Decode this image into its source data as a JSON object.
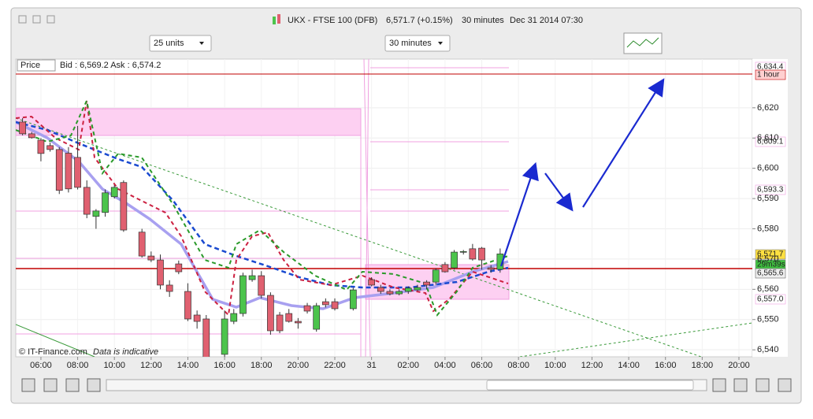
{
  "window": {
    "title": "UKX - FTSE 100 (DFB)",
    "price": "6,571.7 (+0.15%)",
    "interval": "30 minutes",
    "datetime": "Dec 31 2014 07:30"
  },
  "toolbar": {
    "units": "25 units",
    "period": "30 minutes"
  },
  "info": {
    "price_label": "Price",
    "bid_ask": "Bid : 6,569.2 Ask : 6,574.2"
  },
  "footer": {
    "copyright": "© IT-Finance.com",
    "note": "Data is indicative"
  },
  "price_tags": [
    "6,634.4",
    "1 hour",
    "6,609.1",
    "6,593.3",
    "6,571.7",
    "29m39s",
    "6,565.6",
    "6,557.0"
  ],
  "chart_data": {
    "type": "candlestick",
    "up_color": "#4cc44c",
    "down_color": "#e06070",
    "x": [
      5,
      5.5,
      6,
      6.5,
      7,
      7.5,
      8,
      8.5,
      9,
      9.5,
      10,
      10.5,
      11.5,
      12,
      12.5,
      13,
      13.5,
      14,
      14.5,
      15,
      16,
      16.5,
      17,
      17.5,
      18,
      18.5,
      19,
      19.5,
      20,
      20.5,
      21,
      21.5,
      22,
      23,
      24,
      24.5,
      25,
      25.5,
      26,
      26.5,
      27,
      27.5,
      28,
      28.5,
      29,
      29.5,
      30,
      30.5,
      31
    ],
    "open": [
      6615.3,
      6611.4,
      6609.3,
      6607.5,
      6606.2,
      6605.0,
      6603.6,
      6593.7,
      6584.1,
      6585.4,
      6590.6,
      6595.3,
      6578.9,
      6571.0,
      6569.7,
      6561.4,
      6568.4,
      6559.3,
      6551.5,
      6550.2,
      6538.5,
      6549.4,
      6552.0,
      6563.2,
      6564.5,
      6558.0,
      6551.5,
      6552.0,
      6549.4,
      6554.6,
      6546.8,
      6555.9,
      6555.9,
      6553.6,
      6563.2,
      6560.6,
      6559.3,
      6558.5,
      6559.3,
      6559.8,
      6562.4,
      6562.4,
      6568.2,
      6567.1,
      6572.3,
      6573.4,
      6573.6,
      6567.1,
      6566.6
    ],
    "high": [
      6616.6,
      6612.0,
      6610.0,
      6608.5,
      6607.0,
      6607.0,
      6614.0,
      6596.0,
      6586.5,
      6593.0,
      6594.5,
      6596.0,
      6580.0,
      6572.5,
      6571.5,
      6563.0,
      6569.5,
      6562.0,
      6553.0,
      6551.5,
      6553.0,
      6553.5,
      6565.5,
      6566.5,
      6566.0,
      6559.0,
      6552.5,
      6553.5,
      6550.5,
      6555.5,
      6555.5,
      6557.0,
      6557.0,
      6560.5,
      6564.0,
      6561.5,
      6560.0,
      6560.0,
      6561.0,
      6561.5,
      6563.0,
      6567.0,
      6569.0,
      6573.0,
      6573.0,
      6575.0,
      6574.0,
      6568.0,
      6573.5
    ],
    "low": [
      6610.9,
      6609.8,
      6602.3,
      6605.5,
      6591.5,
      6592.0,
      6593.0,
      6583.5,
      6580.0,
      6584.0,
      6590.0,
      6579.0,
      6570.5,
      6569.0,
      6560.0,
      6557.5,
      6565.0,
      6549.5,
      6547.0,
      6536.0,
      6537.0,
      6548.5,
      6551.0,
      6562.5,
      6557.0,
      6545.0,
      6545.5,
      6549.0,
      6547.0,
      6552.0,
      6546.0,
      6554.0,
      6553.0,
      6553.0,
      6561.0,
      6558.5,
      6558.0,
      6558.0,
      6558.5,
      6559.5,
      6560.0,
      6561.5,
      6565.5,
      6566.5,
      6571.5,
      6569.5,
      6566.5,
      6565.5,
      6565.5
    ],
    "close": [
      6611.4,
      6610.1,
      6604.9,
      6606.2,
      6592.7,
      6593.2,
      6593.7,
      6584.8,
      6585.9,
      6591.9,
      6593.7,
      6579.6,
      6571.0,
      6569.7,
      6561.4,
      6559.3,
      6565.8,
      6550.2,
      6549.4,
      6537.2,
      6550.2,
      6552.0,
      6564.5,
      6564.5,
      6558.0,
      6546.3,
      6546.3,
      6549.4,
      6548.9,
      6552.8,
      6554.6,
      6554.9,
      6553.6,
      6559.8,
      6561.4,
      6559.3,
      6558.5,
      6559.3,
      6560.4,
      6560.6,
      6561.4,
      6566.4,
      6565.8,
      6572.3,
      6572.5,
      6570.0,
      6569.7,
      6566.6,
      6571.7
    ],
    "xlim": [
      4.63,
      44.73
    ],
    "xticks": [
      {
        "value": 6,
        "label": "06:00"
      },
      {
        "value": 8,
        "label": "08:00"
      },
      {
        "value": 10,
        "label": "10:00"
      },
      {
        "value": 12,
        "label": "12:00"
      },
      {
        "value": 14,
        "label": "14:00"
      },
      {
        "value": 16,
        "label": "16:00"
      },
      {
        "value": 18,
        "label": "18:00"
      },
      {
        "value": 20,
        "label": "20:00"
      },
      {
        "value": 22,
        "label": "22:00"
      },
      {
        "value": 24,
        "label": "31"
      },
      {
        "value": 26,
        "label": "02:00"
      },
      {
        "value": 28,
        "label": "04:00"
      },
      {
        "value": 30,
        "label": "06:00"
      },
      {
        "value": 32,
        "label": "08:00"
      },
      {
        "value": 34,
        "label": "10:00"
      },
      {
        "value": 36,
        "label": "12:00"
      },
      {
        "value": 38,
        "label": "14:00"
      },
      {
        "value": 40,
        "label": "16:00"
      },
      {
        "value": 42,
        "label": "18:00"
      },
      {
        "value": 44,
        "label": "20:00"
      }
    ],
    "ylim": [
      6537.7,
      6636.1
    ],
    "yticks": [
      {
        "value": 6540,
        "label": "6,540"
      },
      {
        "value": 6550,
        "label": "6,550"
      },
      {
        "value": 6560,
        "label": "6,560"
      },
      {
        "value": 6570,
        "label": "6,570"
      },
      {
        "value": 6580,
        "label": "6,580"
      },
      {
        "value": 6590,
        "label": "6,590"
      },
      {
        "value": 6600,
        "label": "6,600"
      },
      {
        "value": 6610,
        "label": "6,610"
      },
      {
        "value": 6620,
        "label": "6,620"
      }
    ],
    "grid": true
  }
}
